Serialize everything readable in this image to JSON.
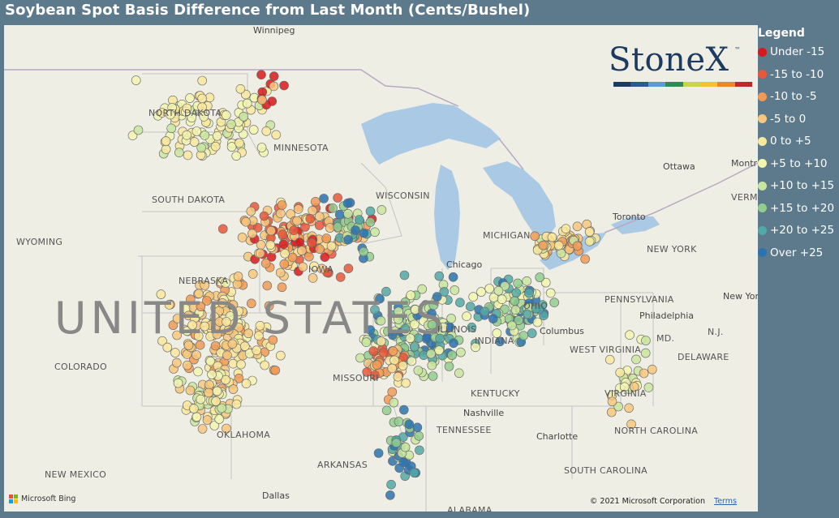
{
  "title": "Soybean Spot Basis Difference from Last Month (Cents/Bushel)",
  "legend": {
    "title": "Legend",
    "items": [
      {
        "label": "Under -15",
        "color": "#d7191c"
      },
      {
        "label": "-15 to -10",
        "color": "#e8573a"
      },
      {
        "label": "-10 to -5",
        "color": "#f29a55"
      },
      {
        "label": "-5 to 0",
        "color": "#f7c77d"
      },
      {
        "label": "0 to +5",
        "color": "#f9e79e"
      },
      {
        "label": "+5 to +10",
        "color": "#f2f5b0"
      },
      {
        "label": "+10 to +15",
        "color": "#c9e6a0"
      },
      {
        "label": "+15 to +20",
        "color": "#92cc8f"
      },
      {
        "label": "+20 to +25",
        "color": "#52a8a4"
      },
      {
        "label": "Over +25",
        "color": "#2b73b0"
      }
    ]
  },
  "logo": {
    "text": "StoneX",
    "tm": "™",
    "bar_colors": [
      "#1d3a60",
      "#2a5d8f",
      "#5c9bd1",
      "#2e8b57",
      "#c8d44a",
      "#f2c230",
      "#e8862a",
      "#c0282d"
    ]
  },
  "map_labels": {
    "winnipeg": "Winnipeg",
    "north_dakota": "NORTH DAKOTA",
    "minnesota": "MINNESOTA",
    "south_dakota": "SOUTH DAKOTA",
    "wisconsin": "WISCONSIN",
    "wyoming": "WYOMING",
    "nebraska": "NEBRASKA",
    "iowa": "IOWA",
    "michigan": "MICHIGAN",
    "chicago": "Chicago",
    "united_states": "UNITED STATES",
    "colorado": "COLORADO",
    "missouri": "MISSOURI",
    "illinois": "ILLINOIS",
    "indiana": "INDIANA",
    "ohio": "OHIO",
    "columbus": "Columbus",
    "kentucky": "KENTUCKY",
    "tennessee": "TENNESSEE",
    "nashville": "Nashville",
    "oklahoma": "OKLAHOMA",
    "arkansas": "ARKANSAS",
    "new_mexico": "NEW MEXICO",
    "dallas": "Dallas",
    "alabama": "ALABAMA",
    "north_carolina": "NORTH CAROLINA",
    "south_carolina": "SOUTH CAROLINA",
    "charlotte": "Charlotte",
    "virginia": "VIRGINIA",
    "west_virginia": "WEST VIRGINIA",
    "pennsylvania": "PENNSYLVANIA",
    "new_york_state": "NEW YORK",
    "new_york_city": "New York",
    "philadelphia": "Philadelphia",
    "delaware": "DELAWARE",
    "md": "MD.",
    "nj": "N.J.",
    "toronto": "Toronto",
    "ottawa": "Ottawa",
    "montreal": "Montr",
    "vermont": "VERMO"
  },
  "attribution": {
    "bing": "Microsoft Bing",
    "copyright": "© 2021 Microsoft Corporation",
    "terms": "Terms"
  }
}
